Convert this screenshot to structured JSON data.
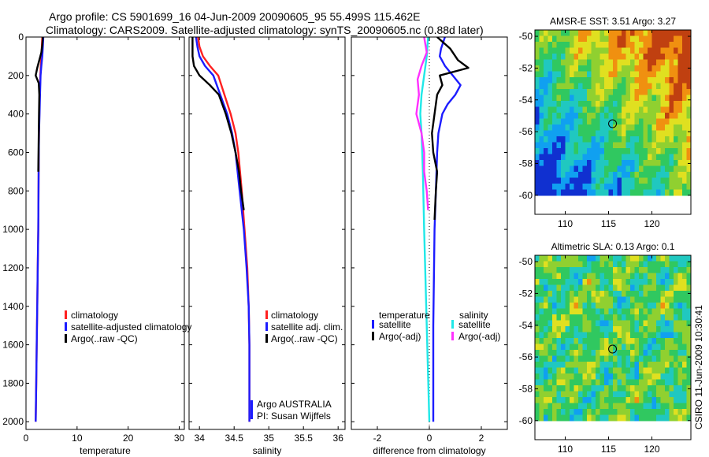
{
  "header": {
    "line1": "Argo profile: CS 5901699_16 04-Jun-2009 20090605_95 55.499S 115.462E",
    "line2": "Climatology: CARS2009. Satellite-adjusted climatology: synTS_20090605.nc (0.88d later)"
  },
  "side_label": "CSIRO 11-Jun-2009 10:30:41",
  "colors": {
    "red": "#ff2020",
    "blue": "#1c1cff",
    "black": "#000000",
    "cyan": "#20e8e8",
    "magenta": "#ff30ff"
  },
  "chart_data": [
    {
      "type": "line",
      "xlabel": "temperature",
      "xlim": [
        0,
        31
      ],
      "ylim": [
        2040,
        0
      ],
      "xticks": [
        0,
        10,
        20,
        30
      ],
      "yticks": [
        0,
        200,
        400,
        600,
        800,
        1000,
        1200,
        1400,
        1600,
        1800,
        2000
      ],
      "legend": {
        "placement": "lower-middle",
        "entries": [
          "climatology",
          "satellite-adjusted climatology",
          "Argo(..raw -QC)"
        ]
      },
      "series": [
        {
          "name": "climatology",
          "color": "#ff2020",
          "points": [
            [
              3.2,
              0
            ],
            [
              3.1,
              50
            ],
            [
              3.0,
              100
            ],
            [
              2.9,
              150
            ],
            [
              2.8,
              200
            ],
            [
              2.7,
              300
            ],
            [
              2.6,
              400
            ],
            [
              2.55,
              500
            ],
            [
              2.5,
              600
            ],
            [
              2.45,
              800
            ],
            [
              2.4,
              1000
            ],
            [
              2.3,
              1200
            ],
            [
              2.2,
              1400
            ],
            [
              2.1,
              1600
            ],
            [
              2.0,
              1800
            ],
            [
              1.9,
              2000
            ]
          ]
        },
        {
          "name": "satellite-adjusted climatology",
          "color": "#1c1cff",
          "points": [
            [
              3.4,
              0
            ],
            [
              3.3,
              50
            ],
            [
              3.2,
              100
            ],
            [
              3.0,
              150
            ],
            [
              2.85,
              200
            ],
            [
              2.75,
              300
            ],
            [
              2.65,
              400
            ],
            [
              2.55,
              500
            ],
            [
              2.5,
              600
            ],
            [
              2.45,
              800
            ],
            [
              2.4,
              1000
            ],
            [
              2.3,
              1200
            ],
            [
              2.2,
              1400
            ],
            [
              2.1,
              1600
            ],
            [
              2.0,
              1800
            ],
            [
              1.9,
              2000
            ]
          ]
        },
        {
          "name": "Argo(..raw -QC)",
          "color": "#000000",
          "points": [
            [
              3.3,
              0
            ],
            [
              3.2,
              40
            ],
            [
              3.0,
              80
            ],
            [
              2.6,
              120
            ],
            [
              2.2,
              160
            ],
            [
              1.9,
              200
            ],
            [
              2.5,
              240
            ],
            [
              2.6,
              300
            ],
            [
              2.55,
              400
            ],
            [
              2.5,
              500
            ],
            [
              2.45,
              600
            ],
            [
              2.4,
              700
            ]
          ]
        }
      ]
    },
    {
      "type": "line",
      "xlabel": "salinity",
      "xlim": [
        33.85,
        36.1
      ],
      "ylim": [
        2040,
        0
      ],
      "xticks": [
        34,
        34.5,
        35,
        35.5,
        36
      ],
      "yticks": [
        0,
        200,
        400,
        600,
        800,
        1000,
        1200,
        1400,
        1600,
        1800,
        2000
      ],
      "legend": {
        "placement": "lower-middle",
        "entries": [
          "climatology",
          "satellite adj. clim.",
          "Argo(..raw -QC)"
        ]
      },
      "annotation": [
        "Argo AUSTRALIA",
        "PI: Susan Wijffels"
      ],
      "series": [
        {
          "name": "climatology",
          "color": "#ff2020",
          "points": [
            [
              33.98,
              0
            ],
            [
              34.0,
              50
            ],
            [
              34.05,
              100
            ],
            [
              34.15,
              150
            ],
            [
              34.27,
              200
            ],
            [
              34.36,
              300
            ],
            [
              34.45,
              400
            ],
            [
              34.52,
              500
            ],
            [
              34.56,
              600
            ],
            [
              34.61,
              800
            ],
            [
              34.65,
              1000
            ],
            [
              34.69,
              1200
            ],
            [
              34.71,
              1400
            ],
            [
              34.72,
              1600
            ],
            [
              34.72,
              1800
            ],
            [
              34.72,
              2000
            ]
          ]
        },
        {
          "name": "satellite adj. clim.",
          "color": "#1c1cff",
          "points": [
            [
              33.95,
              0
            ],
            [
              33.97,
              50
            ],
            [
              34.0,
              100
            ],
            [
              34.08,
              150
            ],
            [
              34.2,
              200
            ],
            [
              34.3,
              300
            ],
            [
              34.4,
              400
            ],
            [
              34.47,
              500
            ],
            [
              34.52,
              600
            ],
            [
              34.58,
              800
            ],
            [
              34.64,
              1000
            ],
            [
              34.68,
              1200
            ],
            [
              34.71,
              1400
            ],
            [
              34.72,
              1600
            ],
            [
              34.72,
              1800
            ],
            [
              34.72,
              2000
            ]
          ]
        },
        {
          "name": "Argo(..raw -QC)",
          "color": "#000000",
          "points": [
            [
              33.9,
              0
            ],
            [
              33.9,
              100
            ],
            [
              33.92,
              150
            ],
            [
              34.0,
              200
            ],
            [
              34.15,
              250
            ],
            [
              34.28,
              300
            ],
            [
              34.38,
              400
            ],
            [
              34.46,
              500
            ],
            [
              34.52,
              600
            ],
            [
              34.57,
              700
            ],
            [
              34.6,
              800
            ],
            [
              34.64,
              900
            ]
          ]
        }
      ]
    },
    {
      "type": "line",
      "xlabel": "difference from climatology",
      "xlim": [
        -3,
        3
      ],
      "ylim": [
        2040,
        0
      ],
      "xticks": [
        -2,
        0,
        2
      ],
      "yticks": [
        0,
        200,
        400,
        600,
        800,
        1000,
        1200,
        1400,
        1600,
        1800,
        2000
      ],
      "legend": {
        "placement": "lower-middle",
        "groups": [
          {
            "title": "temperature",
            "entries": [
              "satellite",
              "Argo(-adj)"
            ]
          },
          {
            "title": "salinity",
            "entries": [
              "satellite",
              "Argo(-adj)"
            ]
          }
        ]
      },
      "series": [
        {
          "name": "temperature satellite",
          "color": "#1c1cff",
          "points": [
            [
              0.6,
              0
            ],
            [
              0.45,
              60
            ],
            [
              0.4,
              100
            ],
            [
              0.6,
              150
            ],
            [
              0.9,
              200
            ],
            [
              1.2,
              250
            ],
            [
              1.0,
              300
            ],
            [
              0.7,
              350
            ],
            [
              0.5,
              400
            ],
            [
              0.35,
              500
            ],
            [
              0.3,
              600
            ],
            [
              0.25,
              800
            ],
            [
              0.2,
              1000
            ],
            [
              0.15,
              1500
            ],
            [
              0.15,
              2000
            ]
          ]
        },
        {
          "name": "temperature Argo(-adj)",
          "color": "#000000",
          "points": [
            [
              0.3,
              0
            ],
            [
              0.8,
              60
            ],
            [
              1.1,
              120
            ],
            [
              1.5,
              160
            ],
            [
              0.4,
              200
            ],
            [
              0.5,
              250
            ],
            [
              0.3,
              300
            ],
            [
              0.2,
              400
            ],
            [
              0.1,
              500
            ],
            [
              0.15,
              600
            ],
            [
              0.3,
              700
            ],
            [
              0.25,
              800
            ],
            [
              0.2,
              950
            ]
          ]
        },
        {
          "name": "salinity satellite",
          "color": "#20e8e8",
          "points": [
            [
              -0.05,
              0
            ],
            [
              -0.1,
              100
            ],
            [
              -0.2,
              200
            ],
            [
              -0.3,
              300
            ],
            [
              -0.35,
              400
            ],
            [
              -0.3,
              500
            ],
            [
              -0.25,
              700
            ],
            [
              -0.2,
              1000
            ],
            [
              -0.1,
              1500
            ],
            [
              0.0,
              2000
            ]
          ]
        },
        {
          "name": "salinity Argo(-adj)",
          "color": "#ff30ff",
          "points": [
            [
              -0.2,
              0
            ],
            [
              -0.1,
              80
            ],
            [
              -0.3,
              150
            ],
            [
              -0.45,
              220
            ],
            [
              -0.4,
              300
            ],
            [
              -0.5,
              400
            ],
            [
              -0.3,
              500
            ],
            [
              -0.2,
              600
            ],
            [
              -0.2,
              700
            ],
            [
              -0.1,
              800
            ],
            [
              -0.05,
              900
            ]
          ]
        }
      ]
    },
    {
      "type": "heatmap",
      "title": "AMSR-E SST: 3.51 Argo: 3.27",
      "xlim": [
        106.5,
        124.5
      ],
      "ylim": [
        -61.2,
        -49.6
      ],
      "xticks": [
        110,
        115,
        120
      ],
      "yticks": [
        -50,
        -52,
        -54,
        -56,
        -58,
        -60
      ],
      "data_extent": {
        "lat": [
          -60,
          -49.6
        ]
      },
      "marker": {
        "lon": 115.46,
        "lat": -55.5
      },
      "palette": [
        "#1030d0",
        "#10a0f0",
        "#20c8c0",
        "#30c860",
        "#90d030",
        "#e0e020",
        "#f09010",
        "#c04010"
      ]
    },
    {
      "type": "heatmap",
      "title": "Altimetric SLA: 0.13 Argo: 0.1",
      "xlim": [
        106.5,
        124.5
      ],
      "ylim": [
        -61.2,
        -49.6
      ],
      "xticks": [
        110,
        115,
        120
      ],
      "yticks": [
        -50,
        -52,
        -54,
        -56,
        -58,
        -60
      ],
      "data_extent": {
        "lat": [
          -60,
          -49.6
        ]
      },
      "marker": {
        "lon": 115.46,
        "lat": -55.5
      },
      "palette": [
        "#10a0f0",
        "#20c8c0",
        "#30c860",
        "#90d030",
        "#e0e020",
        "#f09010"
      ]
    }
  ]
}
